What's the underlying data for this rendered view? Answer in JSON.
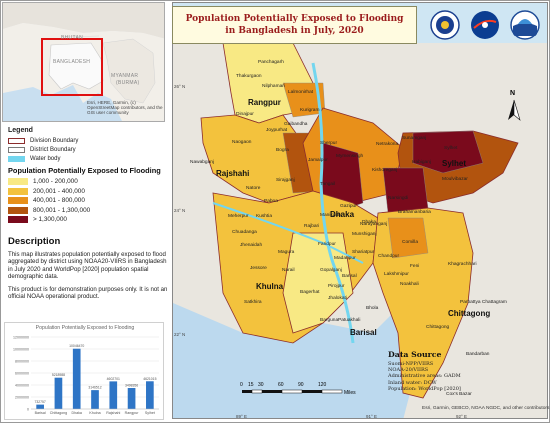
{
  "title": {
    "line1": "Population Potentially Exposed to Flooding",
    "line2": "in Bangladesh in July, 2020"
  },
  "inset": {
    "labels": {
      "bhutan": "BHUTAN",
      "bangladesh": "BANGLADESH",
      "myanmar": "MYANMAR",
      "burma": "(BURMA)"
    },
    "attribution": "Esri, HERE, Garmin, (c) OpenStreetMap contributors, and the GIS user community"
  },
  "legend": {
    "title": "Legend",
    "items": [
      {
        "label": "Division Boundary",
        "color": "#ffffff",
        "border": "#8b2c2c"
      },
      {
        "label": "District Boundary",
        "color": "#ffffff",
        "border": "#7a7a7a"
      },
      {
        "label": "Water body",
        "color": "#73d6ef",
        "border": "#73d6ef"
      }
    ],
    "pop_title": "Population Potentially Exposed to Flooding",
    "pop_classes": [
      {
        "label": "1,000 - 200,000",
        "color": "#f8e984"
      },
      {
        "label": "200,001 - 400,000",
        "color": "#f3c23d"
      },
      {
        "label": "400,001 - 800,000",
        "color": "#e8901a"
      },
      {
        "label": "800,001 - 1,300,000",
        "color": "#b2540e"
      },
      {
        "label": "> 1,300,000",
        "color": "#7a0a1c"
      }
    ]
  },
  "description": {
    "heading": "Description",
    "p1": "This map illustrates population potentially exposed to flood aggregated by district using NOAA20-VIIRS in Bangladesh in July 2020 and WorldPop [2020] population spatial demographic data.",
    "p2": "This product is for demonstration purposes only. It is not an official NOAA operational product."
  },
  "chart_data": {
    "type": "bar",
    "title": "Population Potentially Exposed to Flooding",
    "categories": [
      "Barisal",
      "Chittagong",
      "Dhaka",
      "Khulna",
      "Rajshahi",
      "Rangpur",
      "Sylhet"
    ],
    "values": [
      732757,
      5218988,
      10046470,
      3146512,
      4602701,
      3498356,
      4621015
    ],
    "value_labels": [
      "732757",
      "5218988",
      "10046470",
      "3146512",
      "4602701",
      "3498356",
      "4621015"
    ],
    "yticks": [
      "0",
      "2000000",
      "4000000",
      "6000000",
      "8000000",
      "10000000",
      "12000000"
    ],
    "ylim": [
      0,
      12000000
    ],
    "color": "#2e75c6"
  },
  "regions": {
    "rangpur": "Rangpur",
    "rajshahi": "Rajshahi",
    "sylhet": "Sylhet",
    "dhaka": "Dhaka",
    "khulna": "Khulna",
    "barisal": "Barisal",
    "chittagong": "Chittagong"
  },
  "districts": {
    "panchagarh": "Panchagarh",
    "thakurgaon": "Thakurgaon",
    "nilphamari": "Nilphamari",
    "lalmonirhat": "Lalmonirhat",
    "dinajpur": "Dinajpur",
    "kurigram": "Kurigram",
    "gaibandha": "Gaibandha",
    "joypurhat": "Joypurhat",
    "naogaon": "Naogaon",
    "bogra": "Bogra",
    "nawabganj": "Nawabganj",
    "natore": "Natore",
    "sirajganj": "Sirajganj",
    "pabna": "Pabna",
    "jamalpur": "Jamalpur",
    "sherpur": "Sherpur",
    "mymensingh": "Mymensingh",
    "netrakona": "Netrakona",
    "sunamganj": "Sunamganj",
    "sylhet_d": "Sylhet",
    "habiganj": "Habiganj",
    "moulvibazar": "Moulvibazar",
    "kishoreganj": "Kishoreganj",
    "tangail": "Tangail",
    "gazipur": "Gazipur",
    "narsingdi": "Narsingdi",
    "brahamanbaria": "Brahamanbaria",
    "kushtia": "Kushtia",
    "meherpur": "Meherpur",
    "chuadanga": "Chuadanga",
    "jhenaidah": "Jhenaidah",
    "rajbari": "Rajbari",
    "manikganj": "Manikganj",
    "faridpur": "Faridpur",
    "munshiganj": "Munshiganj",
    "narayanganj": "Narayanganj",
    "comilla": "Comilla",
    "magura": "Magura",
    "narail": "Narail",
    "gopalganj": "Gopalganj",
    "madaripur": "Madaripur",
    "shariatpur": "Shariatpur",
    "chandpur": "Chandpur",
    "jessore": "Jessore",
    "satkhira": "Satkhira",
    "khulna_d": "Khulna",
    "bagerhat": "Bagerhat",
    "pirojpur": "Pirojpur",
    "barisal_d": "Barisal",
    "jhalokati": "Jhalokati",
    "lakshmipur": "Lakshmipur",
    "feni": "Feni",
    "noakhali": "Noakhali",
    "khagrachhari": "Khagrachhari",
    "parbattya": "Parbattya Chattagram",
    "bhola": "Bhola",
    "barguna": "Barguna",
    "patuakhali": "Patuakhali",
    "chittagong_d": "Chittagong",
    "bandarban": "Bandarban",
    "coxsbazar": "Cox's Bazar",
    "dhaka_d": "Dhaka"
  },
  "graticule": {
    "n26": "26° N",
    "n24": "24° N",
    "n22": "22° N",
    "e89": "89° E",
    "e91": "91° E",
    "e92": "92° E"
  },
  "north": "N",
  "scale": {
    "ticks": [
      "0",
      "15",
      "30",
      "60",
      "90",
      "120"
    ],
    "unit": "Miles"
  },
  "data_source": {
    "heading": "Data Source",
    "lines": [
      "Suomi-NPP/VIIRS",
      "NOAA-20/VIIRS",
      "Administrative areas: GADM",
      "Inland water: DCW",
      "Population: WorldPop [2020]"
    ]
  },
  "credits": "Esri, Garmin, GEBCO, NOAA NGDC, and other contributors"
}
